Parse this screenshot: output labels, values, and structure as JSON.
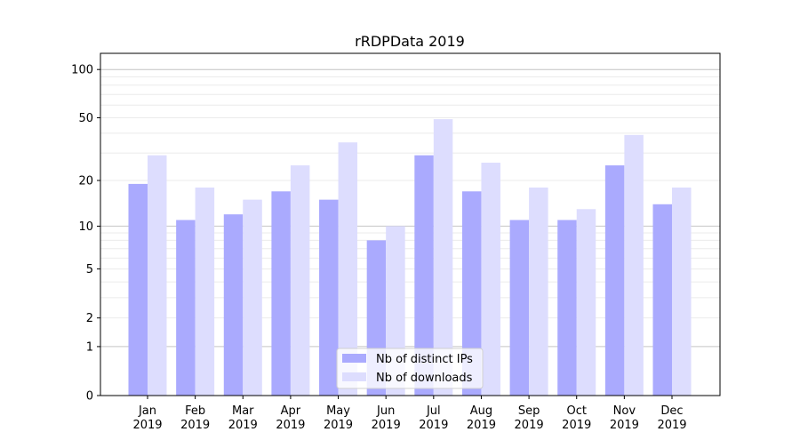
{
  "chart_data": {
    "type": "bar",
    "title": "rRDPData 2019",
    "xlabel": "",
    "ylabel": "",
    "yscale": "log10(y+1)",
    "ylim": [
      0,
      126
    ],
    "grid": true,
    "categories": [
      "Jan\n2019",
      "Feb\n2019",
      "Mar\n2019",
      "Apr\n2019",
      "May\n2019",
      "Jun\n2019",
      "Jul\n2019",
      "Aug\n2019",
      "Sep\n2019",
      "Oct\n2019",
      "Nov\n2019",
      "Dec\n2019"
    ],
    "yticks": [
      0,
      1,
      2,
      5,
      10,
      20,
      50,
      100
    ],
    "series": [
      {
        "name": "Nb of distinct IPs",
        "color": "#aaaafe",
        "values": [
          19,
          11,
          12,
          17,
          15,
          8,
          29,
          17,
          11,
          11,
          25,
          14
        ]
      },
      {
        "name": "Nb of downloads",
        "color": "#ddddfe",
        "values": [
          29,
          18,
          15,
          25,
          35,
          10,
          49,
          26,
          18,
          13,
          39,
          18
        ]
      }
    ],
    "legend_position": "lower-center"
  }
}
